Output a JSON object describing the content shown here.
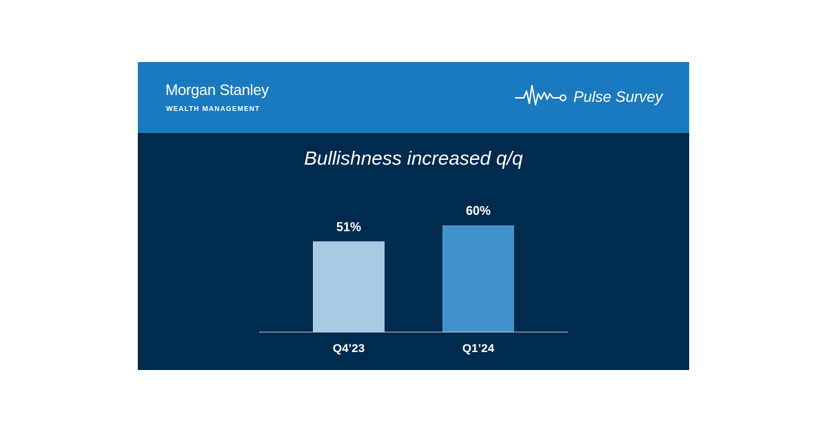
{
  "header": {
    "brand_name": "Morgan Stanley",
    "brand_sub": "WEALTH MANAGEMENT",
    "pulse_label": "Pulse Survey",
    "pulse_icon": "heartbeat-line-icon"
  },
  "colors": {
    "header_bg": "#1b7abf",
    "panel_bg": "#002a4e",
    "bar_q4": "#a8cbe4",
    "bar_q1": "#4192cc",
    "axis": "#c9d6e3"
  },
  "chart_data": {
    "type": "bar",
    "title": "Bullishness increased q/q",
    "categories": [
      "Q4’23",
      "Q1’24"
    ],
    "values": [
      51,
      60
    ],
    "data_labels": [
      "51%",
      "60%"
    ],
    "bar_colors": [
      "#a8cbe4",
      "#4192cc"
    ],
    "ylim": [
      0,
      60
    ],
    "grid": false,
    "legend": "none"
  }
}
